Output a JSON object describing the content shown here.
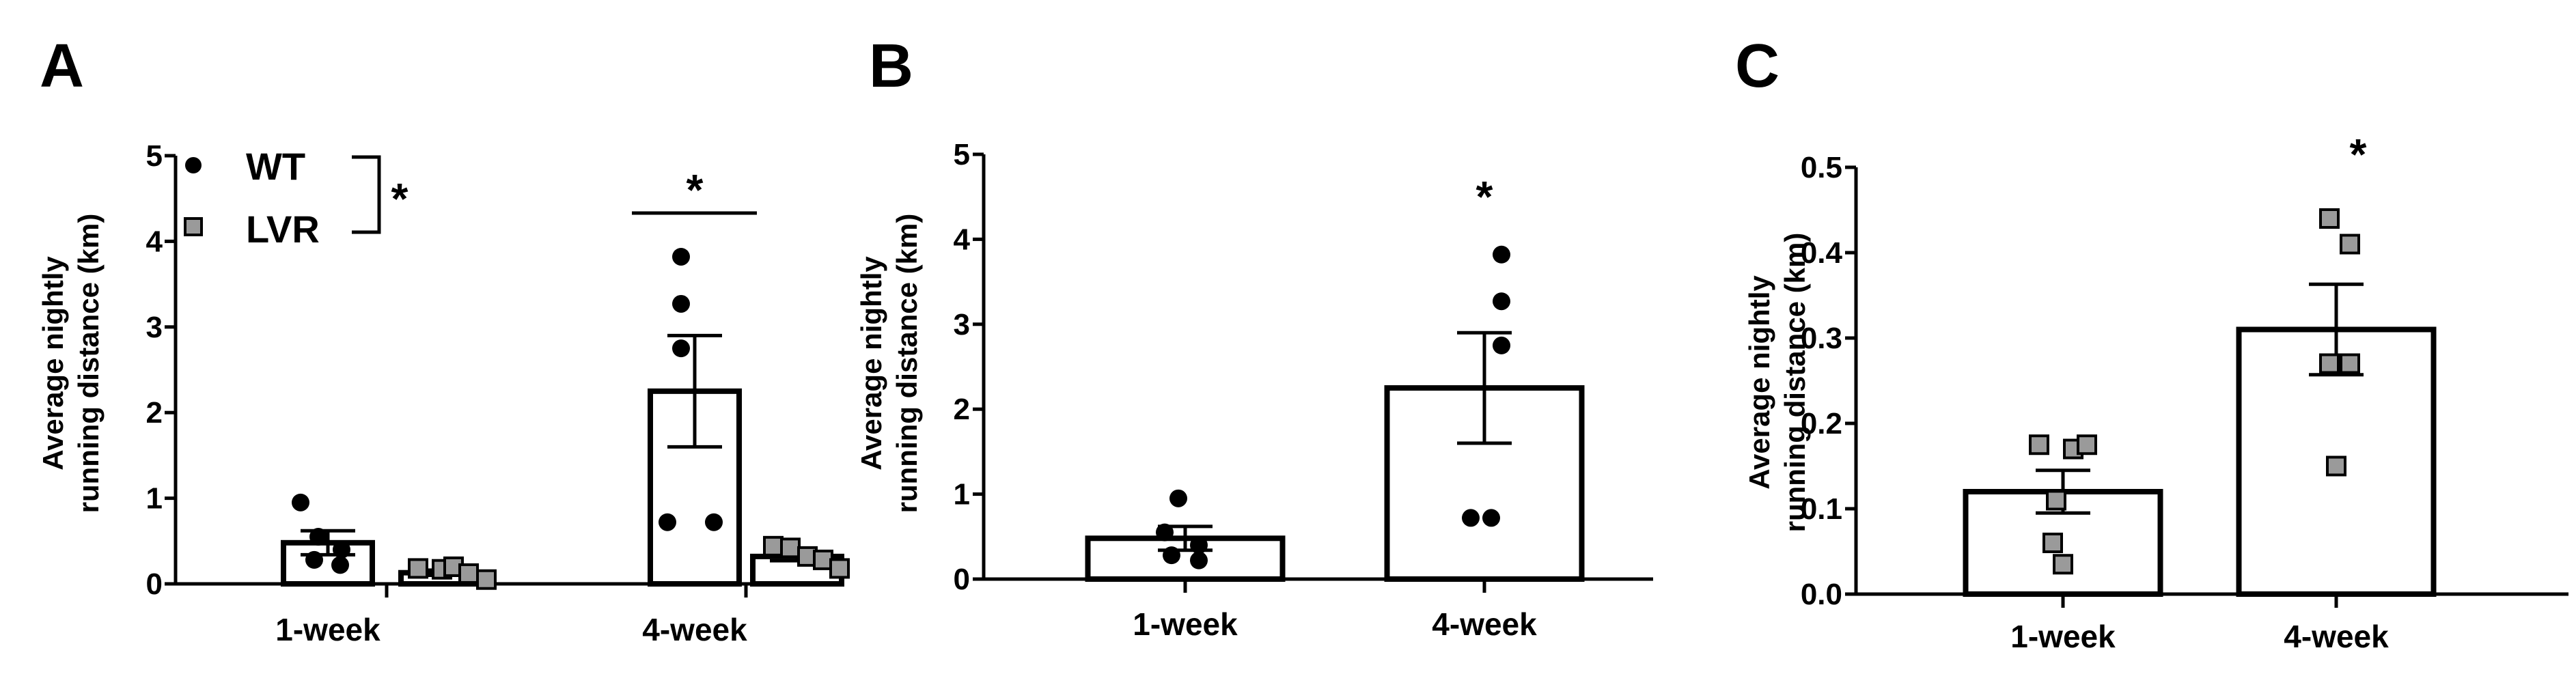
{
  "chart_data": [
    {
      "panel": "A",
      "type": "bar",
      "ylabel_line1": "Average nightly",
      "ylabel_line2": "running distance (km)",
      "ylim": [
        0,
        5
      ],
      "yticks": [
        "0",
        "1",
        "2",
        "3",
        "4",
        "5"
      ],
      "categories": [
        "1-week",
        "4-week"
      ],
      "series": [
        {
          "name": "WT",
          "marker": "circle",
          "color": "#000000",
          "means": [
            0.48,
            2.25
          ],
          "sem": [
            0.14,
            0.65
          ],
          "points": [
            [
              0.95,
              0.55,
              0.4,
              0.28,
              0.22
            ],
            [
              3.82,
              3.27,
              2.75,
              0.72,
              0.72
            ]
          ]
        },
        {
          "name": "LVR",
          "marker": "square",
          "color": "#9a9a9a",
          "means": [
            0.13,
            0.32
          ],
          "sem": [
            0.03,
            0.05
          ],
          "points": [
            [
              0.18,
              0.17,
              0.2,
              0.12,
              0.05
            ],
            [
              0.44,
              0.42,
              0.32,
              0.28,
              0.18
            ]
          ]
        }
      ],
      "legend_bracket_label": "*",
      "significance_label": "*"
    },
    {
      "panel": "B",
      "type": "bar",
      "ylabel_line1": "Average nightly",
      "ylabel_line2": "running distance (km)",
      "ylim": [
        0,
        5
      ],
      "yticks": [
        "0",
        "1",
        "2",
        "3",
        "4",
        "5"
      ],
      "categories": [
        "1-week",
        "4-week"
      ],
      "series": [
        {
          "marker": "circle",
          "color": "#000000",
          "means": [
            0.48,
            2.25
          ],
          "sem": [
            0.14,
            0.65
          ],
          "points": [
            [
              0.95,
              0.55,
              0.4,
              0.28,
              0.22
            ],
            [
              3.82,
              3.27,
              2.75,
              0.72,
              0.72
            ]
          ]
        }
      ],
      "significance_label": "*"
    },
    {
      "panel": "C",
      "type": "bar",
      "ylabel_line1": "Average nightly",
      "ylabel_line2": "running distance (km)",
      "ylim": [
        0,
        0.5
      ],
      "yticks": [
        "0.0",
        "0.1",
        "0.2",
        "0.3",
        "0.4",
        "0.5"
      ],
      "categories": [
        "1-week",
        "4-week"
      ],
      "series": [
        {
          "marker": "square",
          "color": "#9a9a9a",
          "means": [
            0.12,
            0.31
          ],
          "sem": [
            0.025,
            0.053
          ],
          "points": [
            [
              0.175,
              0.17,
              0.175,
              0.11,
              0.06,
              0.035
            ],
            [
              0.44,
              0.41,
              0.27,
              0.27,
              0.15
            ]
          ]
        }
      ],
      "significance_label": "*"
    }
  ]
}
